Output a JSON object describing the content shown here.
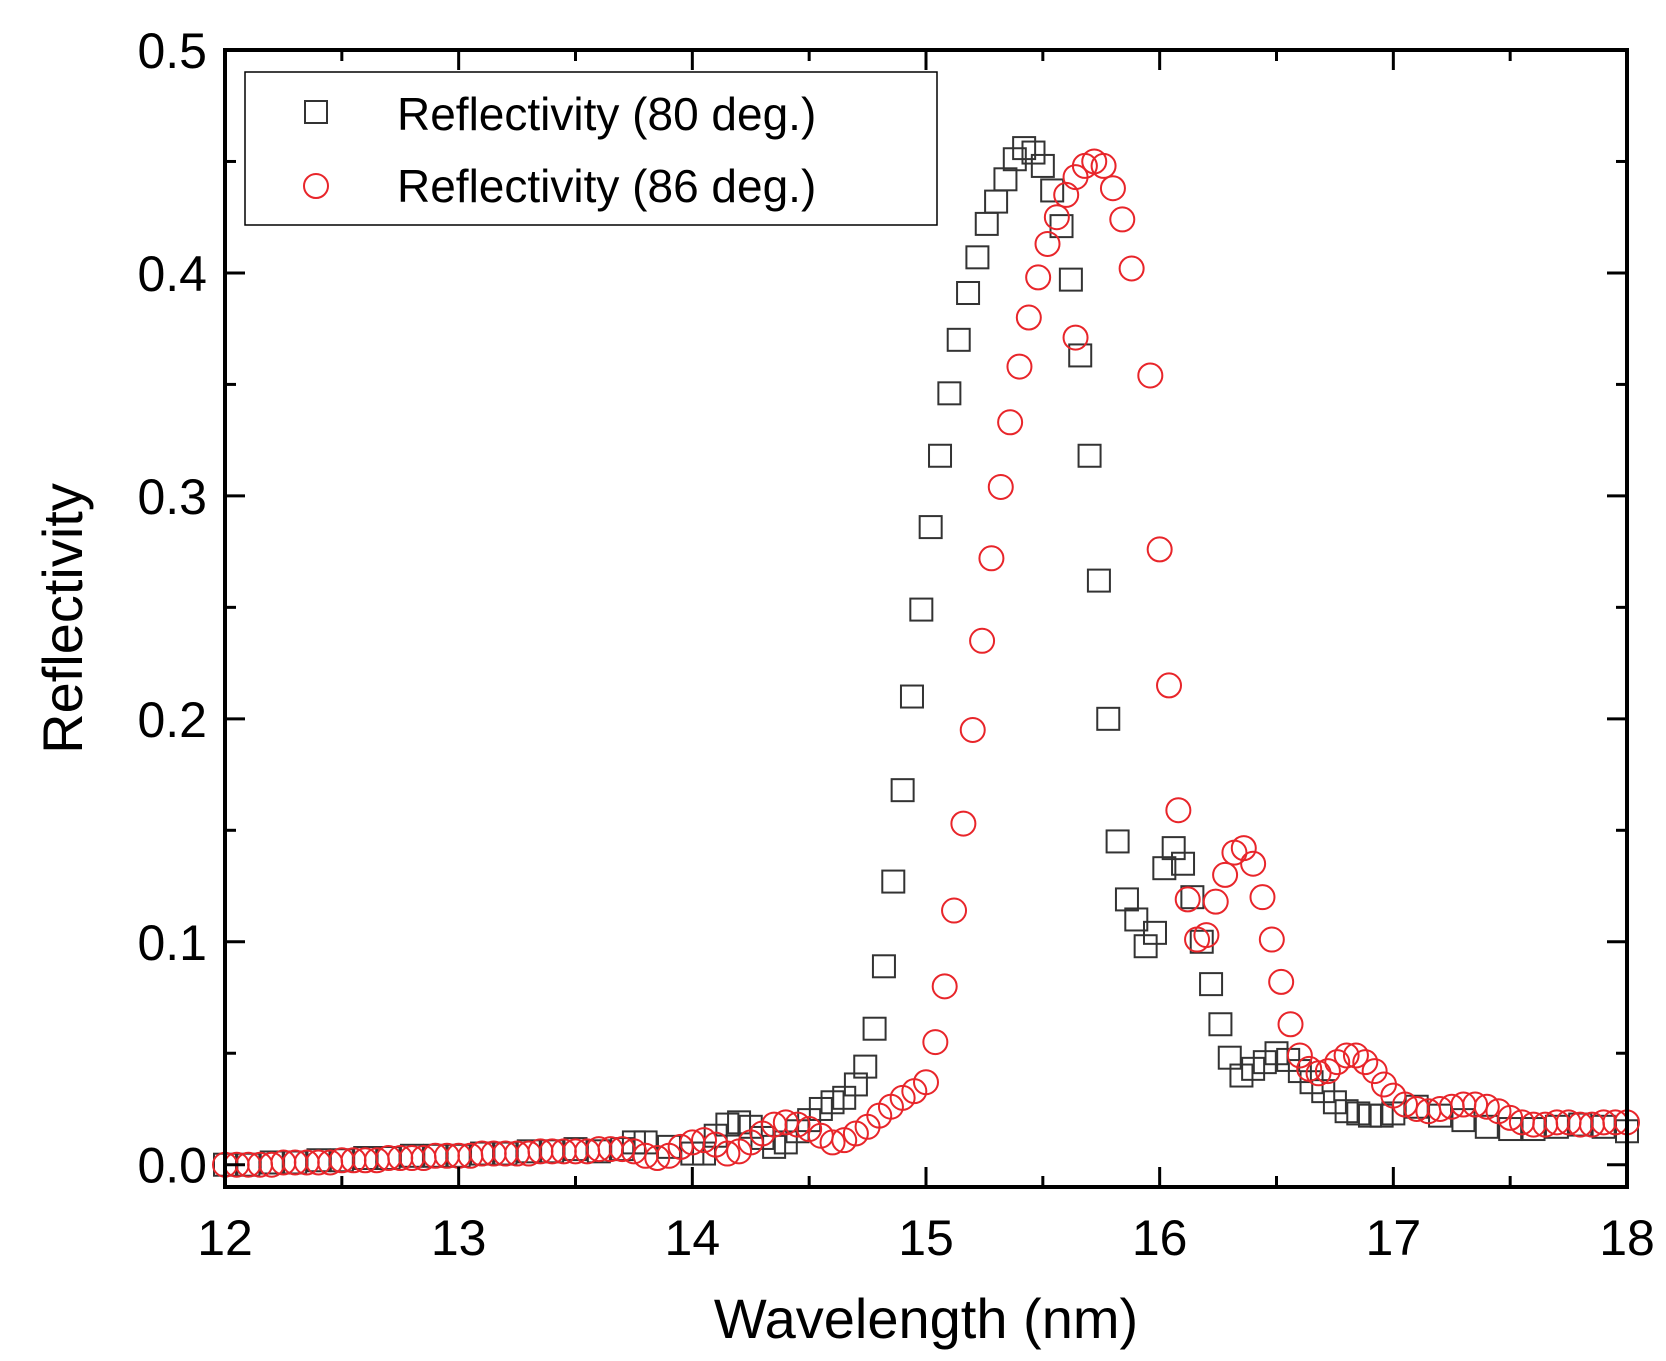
{
  "chart_data": {
    "type": "scatter",
    "xlabel": "Wavelength (nm)",
    "ylabel": "Reflectivity",
    "xlim": [
      12,
      18
    ],
    "ylim": [
      -0.01,
      0.5
    ],
    "xticks": [
      "12",
      "13",
      "14",
      "15",
      "16",
      "17",
      "18"
    ],
    "yticks": [
      "0.0",
      "0.1",
      "0.2",
      "0.3",
      "0.4",
      "0.5"
    ],
    "legend_position": "top-left",
    "grid": false,
    "series": [
      {
        "name": "Reflectivity (80 deg.)",
        "marker": "square",
        "color": "#333333",
        "x": [
          12.0,
          12.1,
          12.2,
          12.3,
          12.4,
          12.5,
          12.6,
          12.7,
          12.8,
          12.9,
          13.0,
          13.1,
          13.2,
          13.3,
          13.4,
          13.5,
          13.6,
          13.7,
          13.75,
          13.8,
          13.9,
          14.0,
          14.05,
          14.1,
          14.15,
          14.2,
          14.25,
          14.3,
          14.35,
          14.4,
          14.45,
          14.5,
          14.55,
          14.6,
          14.65,
          14.7,
          14.74,
          14.78,
          14.82,
          14.86,
          14.9,
          14.94,
          14.98,
          15.02,
          15.06,
          15.1,
          15.14,
          15.18,
          15.22,
          15.26,
          15.3,
          15.34,
          15.38,
          15.42,
          15.46,
          15.5,
          15.54,
          15.58,
          15.62,
          15.66,
          15.7,
          15.74,
          15.78,
          15.82,
          15.86,
          15.9,
          15.94,
          15.98,
          16.02,
          16.06,
          16.1,
          16.14,
          16.18,
          16.22,
          16.26,
          16.3,
          16.35,
          16.4,
          16.45,
          16.5,
          16.55,
          16.6,
          16.65,
          16.7,
          16.75,
          16.8,
          16.85,
          16.9,
          16.95,
          17.0,
          17.1,
          17.2,
          17.3,
          17.4,
          17.5,
          17.6,
          17.7,
          17.8,
          17.9,
          18.0
        ],
        "y": [
          0.0,
          0.0,
          0.001,
          0.001,
          0.002,
          0.002,
          0.003,
          0.003,
          0.004,
          0.004,
          0.004,
          0.005,
          0.005,
          0.006,
          0.006,
          0.007,
          0.006,
          0.007,
          0.01,
          0.01,
          0.008,
          0.005,
          0.005,
          0.013,
          0.018,
          0.019,
          0.017,
          0.012,
          0.008,
          0.01,
          0.015,
          0.02,
          0.025,
          0.028,
          0.03,
          0.036,
          0.044,
          0.061,
          0.089,
          0.127,
          0.168,
          0.21,
          0.249,
          0.286,
          0.318,
          0.346,
          0.37,
          0.391,
          0.407,
          0.422,
          0.432,
          0.442,
          0.451,
          0.456,
          0.454,
          0.448,
          0.437,
          0.421,
          0.397,
          0.363,
          0.318,
          0.262,
          0.2,
          0.145,
          0.119,
          0.11,
          0.098,
          0.104,
          0.133,
          0.142,
          0.135,
          0.12,
          0.1,
          0.081,
          0.063,
          0.048,
          0.04,
          0.043,
          0.046,
          0.05,
          0.047,
          0.042,
          0.037,
          0.033,
          0.028,
          0.024,
          0.023,
          0.022,
          0.022,
          0.023,
          0.026,
          0.022,
          0.02,
          0.017,
          0.016,
          0.016,
          0.017,
          0.018,
          0.017,
          0.015
        ]
      },
      {
        "name": "Reflectivity (86 deg.)",
        "marker": "circle",
        "color": "#e8252a",
        "x": [
          12.0,
          12.05,
          12.1,
          12.15,
          12.2,
          12.25,
          12.3,
          12.35,
          12.4,
          12.45,
          12.5,
          12.55,
          12.6,
          12.65,
          12.7,
          12.75,
          12.8,
          12.85,
          12.9,
          12.95,
          13.0,
          13.05,
          13.1,
          13.15,
          13.2,
          13.25,
          13.3,
          13.35,
          13.4,
          13.45,
          13.5,
          13.55,
          13.6,
          13.65,
          13.7,
          13.75,
          13.8,
          13.85,
          13.9,
          13.95,
          14.0,
          14.05,
          14.1,
          14.15,
          14.2,
          14.25,
          14.3,
          14.35,
          14.4,
          14.45,
          14.5,
          14.55,
          14.6,
          14.65,
          14.7,
          14.75,
          14.8,
          14.85,
          14.9,
          14.95,
          15.0,
          15.04,
          15.08,
          15.12,
          15.16,
          15.2,
          15.24,
          15.28,
          15.32,
          15.36,
          15.4,
          15.44,
          15.48,
          15.52,
          15.56,
          15.6,
          15.64,
          15.68,
          15.72,
          15.76,
          15.8,
          15.84,
          15.88,
          15.64,
          15.96,
          16.0,
          16.04,
          16.08,
          16.12,
          16.16,
          16.2,
          16.24,
          16.28,
          16.32,
          16.36,
          16.4,
          16.44,
          16.48,
          16.52,
          16.56,
          16.6,
          16.64,
          16.68,
          16.72,
          16.76,
          16.8,
          16.84,
          16.88,
          16.92,
          16.96,
          17.0,
          17.05,
          17.1,
          17.15,
          17.2,
          17.25,
          17.3,
          17.35,
          17.4,
          17.45,
          17.5,
          17.55,
          17.6,
          17.65,
          17.7,
          17.75,
          17.8,
          17.85,
          17.9,
          17.95,
          18.0
        ],
        "y": [
          0.0,
          0.0,
          0.0,
          0.0,
          0.0,
          0.001,
          0.001,
          0.001,
          0.001,
          0.001,
          0.002,
          0.002,
          0.002,
          0.002,
          0.003,
          0.003,
          0.003,
          0.003,
          0.004,
          0.004,
          0.004,
          0.004,
          0.005,
          0.005,
          0.005,
          0.005,
          0.005,
          0.006,
          0.006,
          0.006,
          0.006,
          0.006,
          0.007,
          0.007,
          0.007,
          0.006,
          0.004,
          0.003,
          0.004,
          0.008,
          0.01,
          0.011,
          0.009,
          0.005,
          0.006,
          0.01,
          0.014,
          0.018,
          0.019,
          0.018,
          0.016,
          0.013,
          0.01,
          0.011,
          0.014,
          0.017,
          0.022,
          0.026,
          0.03,
          0.033,
          0.037,
          0.055,
          0.08,
          0.114,
          0.153,
          0.195,
          0.235,
          0.272,
          0.304,
          0.333,
          0.358,
          0.38,
          0.398,
          0.413,
          0.425,
          0.435,
          0.443,
          0.448,
          0.45,
          0.448,
          0.438,
          0.424,
          0.402,
          0.371,
          0.354,
          0.276,
          0.215,
          0.159,
          0.119,
          0.101,
          0.103,
          0.118,
          0.13,
          0.14,
          0.142,
          0.135,
          0.12,
          0.101,
          0.082,
          0.063,
          0.049,
          0.043,
          0.041,
          0.042,
          0.046,
          0.049,
          0.049,
          0.046,
          0.042,
          0.036,
          0.031,
          0.027,
          0.025,
          0.024,
          0.025,
          0.026,
          0.027,
          0.027,
          0.026,
          0.024,
          0.021,
          0.019,
          0.018,
          0.018,
          0.019,
          0.019,
          0.018,
          0.018,
          0.019,
          0.019,
          0.019
        ]
      }
    ]
  }
}
